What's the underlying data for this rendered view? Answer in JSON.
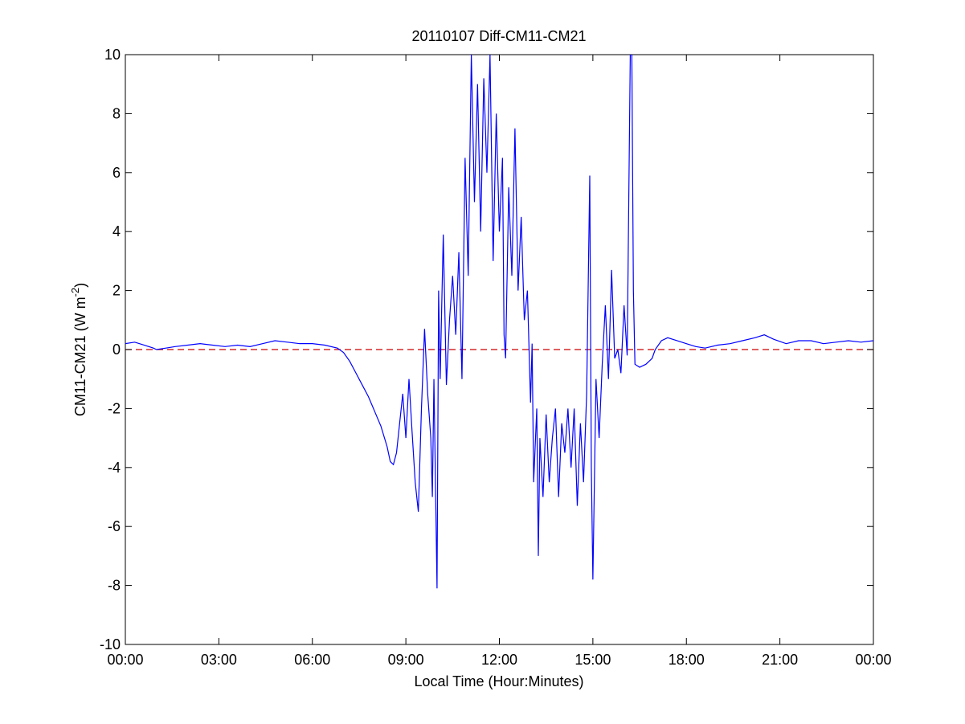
{
  "chart_data": {
    "type": "line",
    "title": "20110107 Diff-CM11-CM21",
    "xlabel": "Local Time (Hour:Minutes)",
    "ylabel": "CM11-CM21 (W m",
    "ylabel_superscript": "-2",
    "ylabel_suffix": ")",
    "xlim": [
      0,
      24
    ],
    "ylim": [
      -10,
      10
    ],
    "x_ticks": [
      0,
      3,
      6,
      9,
      12,
      15,
      18,
      21,
      24
    ],
    "x_tick_labels": [
      "00:00",
      "03:00",
      "06:00",
      "09:00",
      "12:00",
      "15:00",
      "18:00",
      "21:00",
      "00:00"
    ],
    "y_ticks": [
      -10,
      -8,
      -6,
      -4,
      -2,
      0,
      2,
      4,
      6,
      8,
      10
    ],
    "y_tick_labels": [
      "-10",
      "-8",
      "-6",
      "-4",
      "-2",
      "0",
      "2",
      "4",
      "6",
      "8",
      "10"
    ],
    "grid": false,
    "reference_line": {
      "y": 0,
      "style": "dashed",
      "color": "#cc0000"
    },
    "series": [
      {
        "color": "#0000ff",
        "points": [
          [
            0.0,
            0.2
          ],
          [
            0.3,
            0.25
          ],
          [
            0.6,
            0.15
          ],
          [
            0.9,
            0.05
          ],
          [
            1.0,
            0.0
          ],
          [
            1.3,
            0.05
          ],
          [
            1.6,
            0.1
          ],
          [
            2.0,
            0.15
          ],
          [
            2.4,
            0.2
          ],
          [
            2.8,
            0.15
          ],
          [
            3.2,
            0.1
          ],
          [
            3.6,
            0.15
          ],
          [
            4.0,
            0.1
          ],
          [
            4.4,
            0.2
          ],
          [
            4.8,
            0.3
          ],
          [
            5.2,
            0.25
          ],
          [
            5.6,
            0.2
          ],
          [
            6.0,
            0.2
          ],
          [
            6.4,
            0.15
          ],
          [
            6.8,
            0.05
          ],
          [
            7.0,
            -0.1
          ],
          [
            7.2,
            -0.4
          ],
          [
            7.4,
            -0.8
          ],
          [
            7.6,
            -1.2
          ],
          [
            7.8,
            -1.6
          ],
          [
            8.0,
            -2.1
          ],
          [
            8.2,
            -2.6
          ],
          [
            8.4,
            -3.3
          ],
          [
            8.5,
            -3.8
          ],
          [
            8.6,
            -3.9
          ],
          [
            8.7,
            -3.5
          ],
          [
            8.8,
            -2.5
          ],
          [
            8.9,
            -1.5
          ],
          [
            9.0,
            -3.0
          ],
          [
            9.1,
            -1.0
          ],
          [
            9.2,
            -2.8
          ],
          [
            9.3,
            -4.5
          ],
          [
            9.4,
            -5.5
          ],
          [
            9.5,
            -2.0
          ],
          [
            9.6,
            0.7
          ],
          [
            9.7,
            -1.5
          ],
          [
            9.8,
            -3.0
          ],
          [
            9.85,
            -5.0
          ],
          [
            9.9,
            -1.0
          ],
          [
            10.0,
            -8.1
          ],
          [
            10.05,
            2.0
          ],
          [
            10.1,
            -1.0
          ],
          [
            10.2,
            3.9
          ],
          [
            10.3,
            -1.2
          ],
          [
            10.4,
            1.0
          ],
          [
            10.5,
            2.5
          ],
          [
            10.6,
            0.5
          ],
          [
            10.7,
            3.3
          ],
          [
            10.8,
            -1.0
          ],
          [
            10.9,
            6.5
          ],
          [
            11.0,
            2.5
          ],
          [
            11.1,
            10.0
          ],
          [
            11.2,
            5.0
          ],
          [
            11.3,
            9.0
          ],
          [
            11.4,
            4.0
          ],
          [
            11.5,
            9.2
          ],
          [
            11.6,
            6.0
          ],
          [
            11.7,
            10.0
          ],
          [
            11.8,
            3.0
          ],
          [
            11.9,
            8.0
          ],
          [
            12.0,
            4.0
          ],
          [
            12.1,
            6.5
          ],
          [
            12.15,
            0.5
          ],
          [
            12.2,
            -0.3
          ],
          [
            12.3,
            5.5
          ],
          [
            12.4,
            2.5
          ],
          [
            12.5,
            7.5
          ],
          [
            12.6,
            2.0
          ],
          [
            12.7,
            4.5
          ],
          [
            12.8,
            1.0
          ],
          [
            12.9,
            2.0
          ],
          [
            13.0,
            -1.8
          ],
          [
            13.05,
            0.2
          ],
          [
            13.1,
            -4.5
          ],
          [
            13.2,
            -2.0
          ],
          [
            13.25,
            -7.0
          ],
          [
            13.3,
            -3.0
          ],
          [
            13.4,
            -5.0
          ],
          [
            13.5,
            -2.2
          ],
          [
            13.6,
            -4.5
          ],
          [
            13.7,
            -3.0
          ],
          [
            13.8,
            -2.0
          ],
          [
            13.9,
            -5.0
          ],
          [
            14.0,
            -2.5
          ],
          [
            14.1,
            -3.5
          ],
          [
            14.2,
            -2.0
          ],
          [
            14.3,
            -4.0
          ],
          [
            14.4,
            -2.0
          ],
          [
            14.5,
            -5.3
          ],
          [
            14.6,
            -2.5
          ],
          [
            14.7,
            -4.5
          ],
          [
            14.8,
            -1.5
          ],
          [
            14.9,
            5.9
          ],
          [
            14.95,
            -4.0
          ],
          [
            15.0,
            -7.8
          ],
          [
            15.1,
            -1.0
          ],
          [
            15.2,
            -3.0
          ],
          [
            15.3,
            -0.5
          ],
          [
            15.4,
            1.5
          ],
          [
            15.5,
            -1.0
          ],
          [
            15.6,
            2.7
          ],
          [
            15.7,
            -0.3
          ],
          [
            15.8,
            0.0
          ],
          [
            15.9,
            -0.8
          ],
          [
            16.0,
            1.5
          ],
          [
            16.1,
            -0.2
          ],
          [
            16.2,
            10.0
          ],
          [
            16.25,
            10.0
          ],
          [
            16.3,
            2.0
          ],
          [
            16.35,
            -0.5
          ],
          [
            16.5,
            -0.6
          ],
          [
            16.7,
            -0.5
          ],
          [
            16.9,
            -0.3
          ],
          [
            17.0,
            0.0
          ],
          [
            17.2,
            0.3
          ],
          [
            17.4,
            0.4
          ],
          [
            17.7,
            0.3
          ],
          [
            18.0,
            0.2
          ],
          [
            18.3,
            0.1
          ],
          [
            18.6,
            0.05
          ],
          [
            19.0,
            0.15
          ],
          [
            19.4,
            0.2
          ],
          [
            19.8,
            0.3
          ],
          [
            20.2,
            0.4
          ],
          [
            20.5,
            0.5
          ],
          [
            20.8,
            0.35
          ],
          [
            21.2,
            0.2
          ],
          [
            21.6,
            0.3
          ],
          [
            22.0,
            0.3
          ],
          [
            22.4,
            0.2
          ],
          [
            22.8,
            0.25
          ],
          [
            23.2,
            0.3
          ],
          [
            23.6,
            0.25
          ],
          [
            24.0,
            0.3
          ]
        ]
      }
    ]
  }
}
